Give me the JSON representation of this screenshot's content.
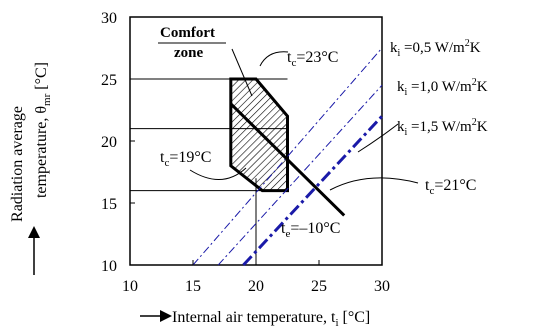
{
  "chart_data": {
    "type": "line",
    "xlabel": "Internal air temperature, t",
    "xlabel_sub": "i",
    "xlabel_unit": " [°C]",
    "ylabel_line1": "Radiation average",
    "ylabel_line2": "temperature, θ",
    "ylabel_sub": "mr",
    "ylabel_unit": " [°C]",
    "xlim": [
      10,
      30
    ],
    "ylim": [
      10,
      30
    ],
    "x_ticks": [
      "10",
      "15",
      "20",
      "25",
      "30"
    ],
    "y_ticks": [
      "10",
      "15",
      "20",
      "25",
      "30"
    ],
    "comfort_zone_label": [
      "Comfort",
      "zone"
    ],
    "comfort_zone_polygon": [
      [
        18,
        25
      ],
      [
        20,
        25
      ],
      [
        22.5,
        22
      ],
      [
        22.5,
        16
      ],
      [
        20.5,
        16
      ],
      [
        18,
        18
      ]
    ],
    "series": [
      {
        "name": "k_i =0,5 W/m²K",
        "style": "dash-dot-thin",
        "color": "#1a1aa8",
        "points": [
          [
            15,
            10
          ],
          [
            30,
            27.5
          ]
        ]
      },
      {
        "name": "k_i =1,0 W/m²K",
        "style": "dash-dot-thin",
        "color": "#1a1aa8",
        "points": [
          [
            17,
            10
          ],
          [
            30,
            24.5
          ]
        ]
      },
      {
        "name": "k_i =1,5 W/m²K",
        "style": "dash-dot-thick",
        "color": "#1a1aa8",
        "points": [
          [
            19,
            10
          ],
          [
            30,
            22
          ]
        ]
      },
      {
        "name": "t_c=21°C",
        "style": "solid-thick",
        "color": "#000000",
        "points": [
          [
            18,
            23
          ],
          [
            27,
            14
          ]
        ]
      }
    ],
    "reference_lines": {
      "horizontal": [
        25,
        21,
        16
      ],
      "vertical_x": 20,
      "vertical_y_range": [
        10,
        17
      ]
    },
    "legend_labels": [
      {
        "base": "k",
        "sub": "i",
        "value": " =0,5 W/m",
        "sup": "2",
        "unit": "K"
      },
      {
        "base": "k",
        "sub": "i",
        "value": " =1,0 W/m",
        "sup": "2",
        "unit": "K"
      },
      {
        "base": "k",
        "sub": "i",
        "value": " =1,5 W/m",
        "sup": "2",
        "unit": "K"
      }
    ],
    "annotations": [
      {
        "base": "t",
        "sub": "c",
        "text": "=23°C"
      },
      {
        "base": "t",
        "sub": "c",
        "text": "=19°C"
      },
      {
        "base": "t",
        "sub": "c",
        "text": "=21°C"
      },
      {
        "base": "t",
        "sub": "e",
        "text": "=–10°C"
      }
    ]
  }
}
